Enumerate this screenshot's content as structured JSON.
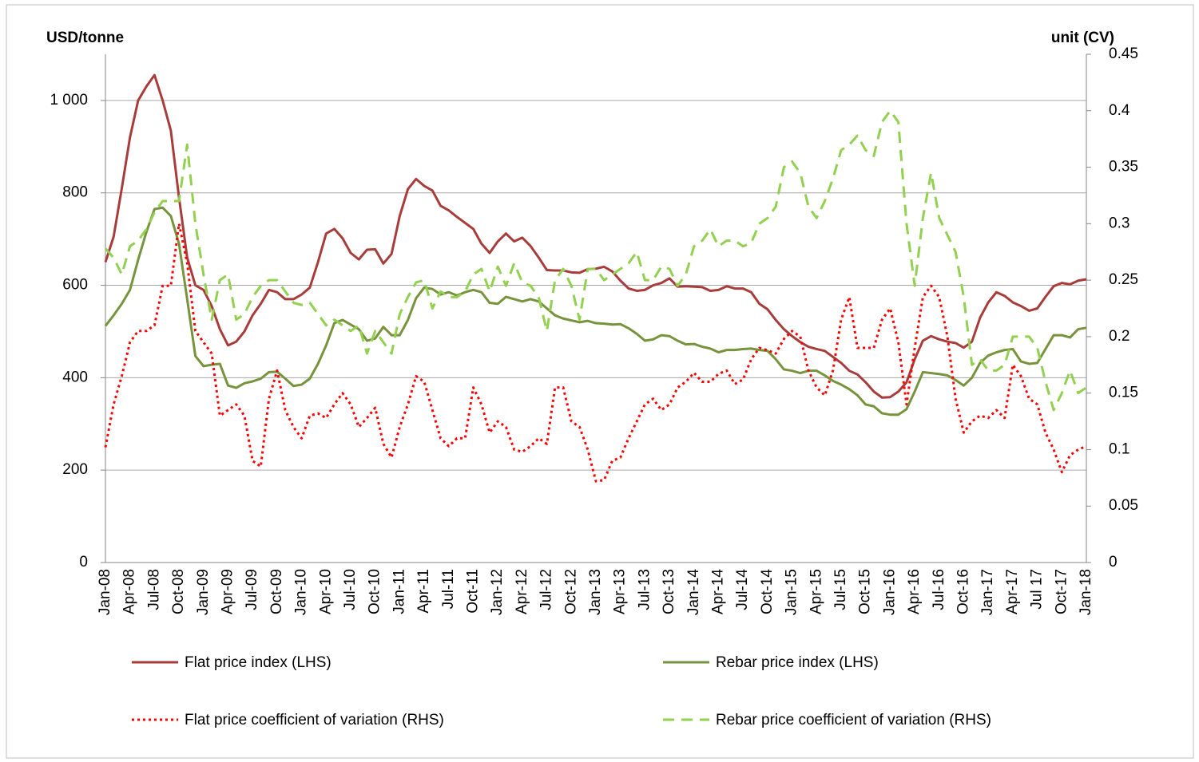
{
  "chart_data": {
    "type": "line",
    "y_label": "USD/tonne",
    "y2_label": "unit (CV)",
    "categories": [
      "Jan-08",
      null,
      null,
      "Apr-08",
      null,
      null,
      "Jul-08",
      null,
      null,
      "Oct-08",
      null,
      null,
      "Jan-09",
      null,
      null,
      "Apr-09",
      null,
      null,
      "Jul-09",
      null,
      null,
      "Oct-09",
      null,
      null,
      "Jan-10",
      null,
      null,
      "Apr-10",
      null,
      null,
      "Jul-10",
      null,
      null,
      "Oct-10",
      null,
      null,
      "Jan-11",
      null,
      null,
      "Apr-11",
      null,
      null,
      "Jul-11",
      null,
      null,
      "Oct-11",
      null,
      null,
      "Jan-12",
      null,
      null,
      "Apr-12",
      null,
      null,
      "Jul-12",
      null,
      null,
      "Oct-12",
      null,
      null,
      "Jan-13",
      null,
      null,
      "Apr-13",
      null,
      null,
      "Jul-13",
      null,
      null,
      "Oct-13",
      null,
      null,
      "Jan-14",
      null,
      null,
      "Apr-14",
      null,
      null,
      "Jul-14",
      null,
      null,
      "Oct-14",
      null,
      null,
      "Jan-15",
      null,
      null,
      "Apr-15",
      null,
      null,
      "Jul-15",
      null,
      null,
      "Oct-15",
      null,
      null,
      "Jan-16",
      null,
      null,
      "Apr-16",
      null,
      null,
      "Jul-16",
      null,
      null,
      "Oct-16",
      null,
      null,
      "Jan-17",
      null,
      null,
      "Apr-17",
      null,
      null,
      "Jul 17",
      null,
      null,
      "Oct-17",
      null,
      null,
      "Jan-18"
    ],
    "series": [
      {
        "name": "Flat price index (LHS)",
        "color": "#a83c3a",
        "style": "solid",
        "values": [
          650,
          705,
          810,
          920,
          1000,
          1030,
          1055,
          1000,
          935,
          790,
          660,
          600,
          590,
          555,
          505,
          470,
          478,
          500,
          535,
          560,
          590,
          585,
          570,
          570,
          580,
          595,
          650,
          712,
          722,
          702,
          670,
          656,
          677,
          678,
          647,
          668,
          750,
          808,
          830,
          815,
          805,
          772,
          762,
          748,
          735,
          722,
          690,
          670,
          695,
          712,
          695,
          703,
          685,
          660,
          633,
          632,
          632,
          628,
          627,
          635,
          636,
          640,
          630,
          610,
          593,
          588,
          590,
          600,
          605,
          615,
          597,
          598,
          597,
          596,
          588,
          590,
          598,
          593,
          593,
          585,
          560,
          548,
          525,
          505,
          490,
          477,
          467,
          462,
          458,
          445,
          432,
          415,
          407,
          390,
          370,
          357,
          358,
          370,
          390,
          440,
          480,
          490,
          483,
          478,
          475,
          465,
          478,
          530,
          563,
          585,
          577,
          563,
          555,
          545,
          550,
          575,
          598,
          605,
          602,
          610,
          613
        ]
      },
      {
        "name": "Rebar price index (LHS)",
        "color": "#77933c",
        "style": "solid",
        "values": [
          512,
          535,
          560,
          590,
          655,
          715,
          765,
          768,
          750,
          690,
          570,
          447,
          425,
          428,
          430,
          383,
          378,
          388,
          392,
          398,
          412,
          413,
          398,
          382,
          385,
          398,
          430,
          470,
          518,
          525,
          515,
          505,
          480,
          485,
          510,
          492,
          492,
          525,
          572,
          595,
          592,
          580,
          585,
          578,
          585,
          590,
          585,
          562,
          560,
          575,
          570,
          565,
          570,
          565,
          550,
          535,
          528,
          524,
          520,
          523,
          518,
          517,
          515,
          516,
          507,
          495,
          480,
          483,
          492,
          490,
          480,
          472,
          473,
          467,
          463,
          455,
          460,
          460,
          462,
          463,
          460,
          458,
          440,
          418,
          415,
          410,
          415,
          415,
          405,
          393,
          385,
          375,
          362,
          342,
          338,
          323,
          320,
          320,
          332,
          370,
          412,
          410,
          408,
          405,
          395,
          383,
          400,
          432,
          448,
          455,
          460,
          462,
          435,
          430,
          432,
          462,
          492,
          492,
          487,
          505,
          508
        ]
      },
      {
        "name": "Flat price coefficient of variation (RHS)",
        "color": "#ff0000",
        "style": "dotted",
        "axis": "y2",
        "values": [
          0.102,
          0.14,
          0.165,
          0.195,
          0.205,
          0.205,
          0.21,
          0.245,
          0.245,
          0.3,
          0.265,
          0.205,
          0.195,
          0.185,
          0.13,
          0.135,
          0.14,
          0.13,
          0.09,
          0.085,
          0.145,
          0.17,
          0.135,
          0.12,
          0.11,
          0.13,
          0.132,
          0.128,
          0.14,
          0.15,
          0.14,
          0.12,
          0.128,
          0.137,
          0.105,
          0.093,
          0.12,
          0.14,
          0.165,
          0.16,
          0.135,
          0.11,
          0.103,
          0.11,
          0.11,
          0.155,
          0.14,
          0.115,
          0.125,
          0.12,
          0.1,
          0.098,
          0.103,
          0.11,
          0.105,
          0.155,
          0.155,
          0.125,
          0.12,
          0.1,
          0.072,
          0.073,
          0.09,
          0.093,
          0.11,
          0.125,
          0.14,
          0.145,
          0.135,
          0.14,
          0.155,
          0.16,
          0.168,
          0.16,
          0.16,
          0.167,
          0.17,
          0.158,
          0.162,
          0.18,
          0.19,
          0.188,
          0.185,
          0.198,
          0.205,
          0.2,
          0.17,
          0.155,
          0.148,
          0.17,
          0.215,
          0.235,
          0.19,
          0.19,
          0.19,
          0.215,
          0.225,
          0.195,
          0.14,
          0.19,
          0.235,
          0.245,
          0.235,
          0.2,
          0.145,
          0.115,
          0.125,
          0.13,
          0.128,
          0.135,
          0.128,
          0.175,
          0.165,
          0.145,
          0.14,
          0.115,
          0.1,
          0.08,
          0.095,
          0.1,
          0.103
        ]
      },
      {
        "name": "Rebar price coefficient of variation (RHS)",
        "color": "#92d050",
        "style": "dashed",
        "axis": "y2",
        "values": [
          0.278,
          0.27,
          0.255,
          0.28,
          0.285,
          0.295,
          0.31,
          0.32,
          0.32,
          0.32,
          0.37,
          0.3,
          0.255,
          0.215,
          0.25,
          0.255,
          0.215,
          0.22,
          0.235,
          0.245,
          0.25,
          0.25,
          0.24,
          0.23,
          0.228,
          0.23,
          0.22,
          0.21,
          0.215,
          0.21,
          0.205,
          0.21,
          0.185,
          0.205,
          0.195,
          0.185,
          0.22,
          0.235,
          0.248,
          0.25,
          0.225,
          0.24,
          0.235,
          0.235,
          0.24,
          0.255,
          0.26,
          0.24,
          0.262,
          0.245,
          0.265,
          0.248,
          0.245,
          0.235,
          0.205,
          0.25,
          0.26,
          0.245,
          0.215,
          0.26,
          0.26,
          0.25,
          0.255,
          0.26,
          0.265,
          0.275,
          0.25,
          0.25,
          0.262,
          0.26,
          0.245,
          0.255,
          0.28,
          0.285,
          0.295,
          0.28,
          0.285,
          0.285,
          0.28,
          0.283,
          0.3,
          0.305,
          0.315,
          0.35,
          0.355,
          0.345,
          0.315,
          0.305,
          0.32,
          0.34,
          0.365,
          0.37,
          0.378,
          0.365,
          0.36,
          0.39,
          0.4,
          0.39,
          0.3,
          0.245,
          0.305,
          0.345,
          0.305,
          0.29,
          0.275,
          0.235,
          0.175,
          0.18,
          0.17,
          0.17,
          0.175,
          0.2,
          0.2,
          0.2,
          0.19,
          0.16,
          0.135,
          0.15,
          0.17,
          0.15,
          0.155
        ]
      }
    ],
    "ylim": [
      0,
      1100
    ],
    "yticks": [
      0,
      200,
      400,
      600,
      800,
      {
        "value": 1000,
        "label": "1 000"
      }
    ],
    "y2lim": [
      0,
      0.45
    ],
    "y2ticks": [
      0,
      0.05,
      0.1,
      0.15,
      0.2,
      0.25,
      0.3,
      0.35,
      0.4,
      0.45
    ],
    "grid": true,
    "legend": "bottom"
  }
}
